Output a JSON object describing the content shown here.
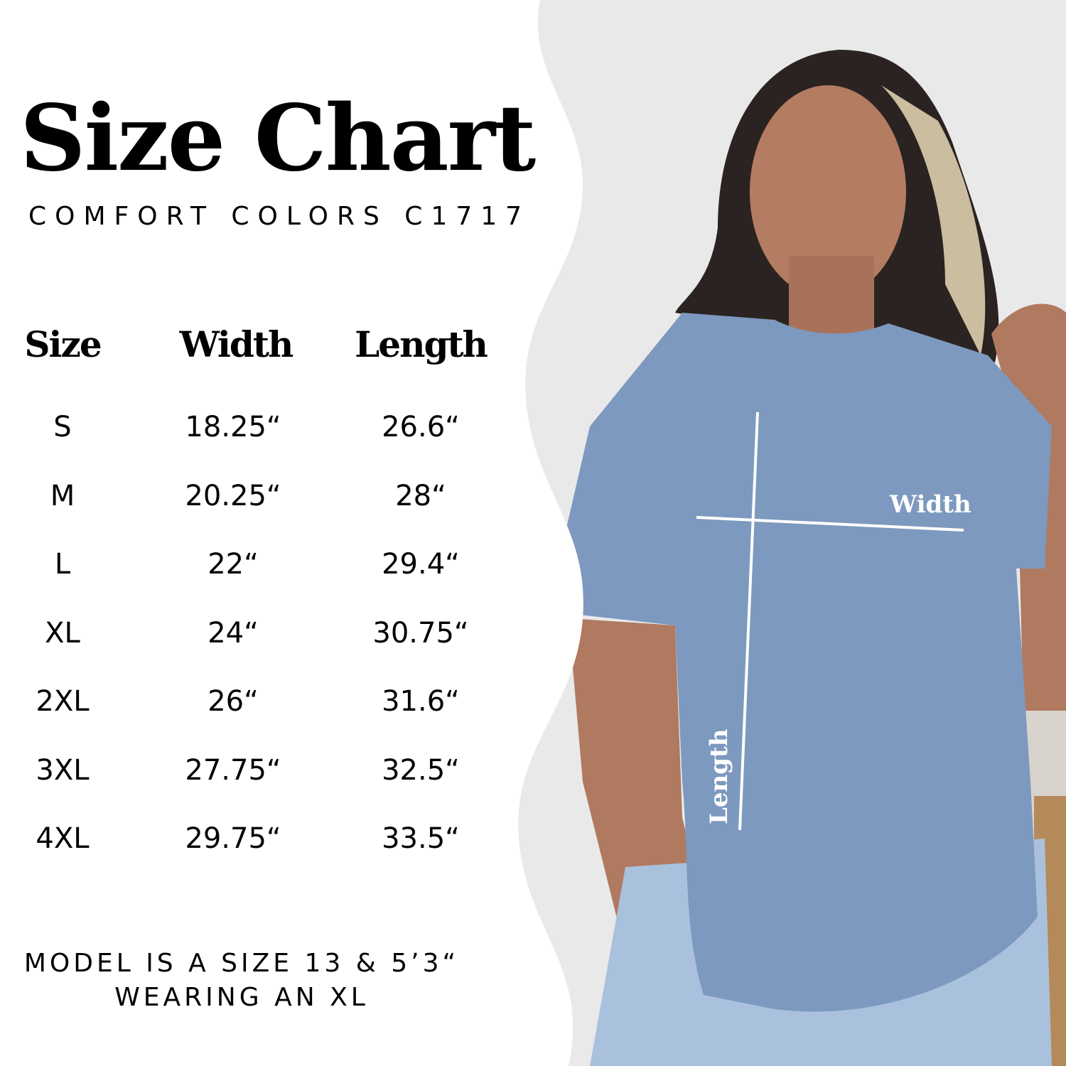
{
  "title": "Size Chart",
  "subtitle": "COMFORT COLORS C1717",
  "table": {
    "headers": [
      "Size",
      "Width",
      "Length"
    ],
    "rows": [
      [
        "S",
        "18.25“",
        "26.6“"
      ],
      [
        "M",
        "20.25“",
        "28“"
      ],
      [
        "L",
        "22“",
        "29.4“"
      ],
      [
        "XL",
        "24“",
        "30.75“"
      ],
      [
        "2XL",
        "26“",
        "31.6“"
      ],
      [
        "3XL",
        "27.75“",
        "32.5“"
      ],
      [
        "4XL",
        "29.75“",
        "33.5“"
      ]
    ]
  },
  "note": {
    "line1": "MODEL IS A SIZE 13 & 5’3“",
    "line2": "WEARING AN XL"
  },
  "diagram": {
    "width_label": "Width",
    "length_label": "Length"
  },
  "colors": {
    "shirt": "#7d99bf",
    "background": "#e9e9ea",
    "text": "#000000"
  }
}
